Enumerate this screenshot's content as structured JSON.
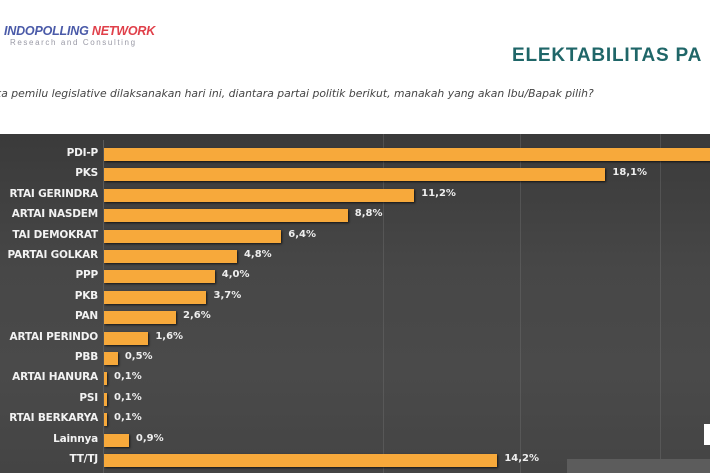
{
  "header": {
    "logo_part1": "INDOPOLLING",
    "logo_part2": "NETWORK",
    "logo_tagline": "Research and Consulting",
    "slide_title": "ELEKTABILITAS PA",
    "question": "ika pemilu legislative dilaksanakan hari ini, diantara partai politik berikut, manakah yang akan Ibu/Bapak pilih?"
  },
  "colors": {
    "bar": "#f7a93b",
    "panel_bg": "#444444",
    "title": "#1f6668",
    "logo_blue": "#4a5aa8",
    "logo_red": "#e0404a"
  },
  "chart_data": {
    "type": "bar",
    "orientation": "horizontal",
    "title": "ELEKTABILITAS PA",
    "subtitle": "ika pemilu legislative dilaksanakan hari ini, diantara partai politik berikut, manakah yang akan Ibu/Bapak pilih?",
    "xlabel": "",
    "ylabel": "",
    "categories": [
      "PDI-P",
      "PKS",
      "PARTAI GERINDRA",
      "PARTAI NASDEM",
      "PARTAI DEMOKRAT",
      "PARTAI GOLKAR",
      "PPP",
      "PKB",
      "PAN",
      "PARTAI PERINDO",
      "PBB",
      "PARTAI HANURA",
      "PSI",
      "PARTAI BERKARYA",
      "Lainnya",
      "TT/TJ"
    ],
    "display_labels": [
      "PDI-P",
      "PKS",
      "RTAI GERINDRA",
      "ARTAI NASDEM",
      "TAI DEMOKRAT",
      "PARTAI GOLKAR",
      "PPP",
      "PKB",
      "PAN",
      "ARTAI PERINDO",
      "PBB",
      "ARTAI HANURA",
      "PSI",
      "RTAI BERKARYA",
      "Lainnya",
      "TT/TJ"
    ],
    "values": [
      null,
      18.1,
      11.2,
      8.8,
      6.4,
      4.8,
      4.0,
      3.7,
      2.6,
      1.6,
      0.5,
      0.1,
      0.1,
      0.1,
      0.9,
      14.2
    ],
    "value_labels": [
      "",
      "18,1%",
      "11,2%",
      "8,8%",
      "6,4%",
      "4,8%",
      "4,0%",
      "3,7%",
      "2,6%",
      "1,6%",
      "0,5%",
      "0,1%",
      "0,1%",
      "0,1%",
      "0,9%",
      "14,2%"
    ],
    "notes": "PDI-P bar extends beyond visible area (>21.9%); its value label is cropped out of view.",
    "grid": true,
    "legend": null,
    "unit": "%"
  }
}
